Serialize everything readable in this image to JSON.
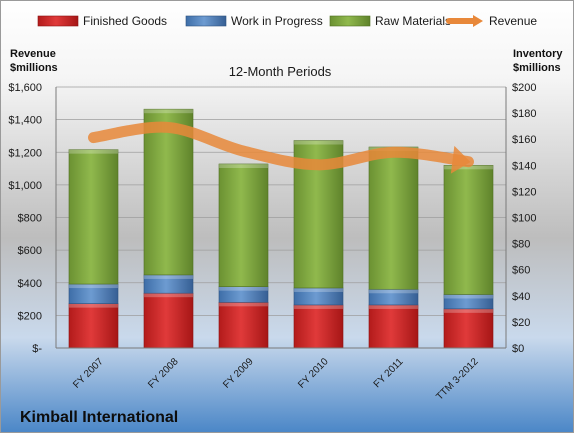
{
  "chart_data": {
    "type": "bar",
    "stacked": true,
    "title": "12-Month Periods",
    "company": "Kimball International",
    "y_left_label_line1": "Revenue",
    "y_left_label_line2": "$millions",
    "y_right_label_line1": "Inventory",
    "y_right_label_line2": "$millions",
    "categories": [
      "FY 2007",
      "FY 2008",
      "FY 2009",
      "FY 2010",
      "FY 2011",
      "TTM 3-2012"
    ],
    "ylim_left": [
      0,
      1600
    ],
    "ylim_right": [
      0,
      200
    ],
    "left_ticks": [
      "$-",
      "$200",
      "$400",
      "$600",
      "$800",
      "$1,000",
      "$1,200",
      "$1,400",
      "$1,600"
    ],
    "right_ticks": [
      "$0",
      "$20",
      "$40",
      "$60",
      "$80",
      "$100",
      "$120",
      "$140",
      "$160",
      "$180",
      "$200"
    ],
    "legend_position": "top",
    "series": [
      {
        "name": "Finished Goods",
        "axis": "right",
        "color": "#d52b2b",
        "values": [
          34,
          42,
          35,
          33,
          33,
          30
        ]
      },
      {
        "name": "Work in Progress",
        "axis": "right",
        "color": "#4f81bd",
        "values": [
          15,
          14,
          12,
          13,
          12,
          11
        ]
      },
      {
        "name": "Raw Materials",
        "axis": "right",
        "color": "#7fa73f",
        "values": [
          103,
          127,
          94,
          113,
          109,
          99
        ]
      },
      {
        "name": "Revenue",
        "axis": "left",
        "type": "line",
        "color": "#e8883a",
        "values": [
          1290,
          1352,
          1207,
          1123,
          1200,
          1142
        ]
      }
    ]
  }
}
